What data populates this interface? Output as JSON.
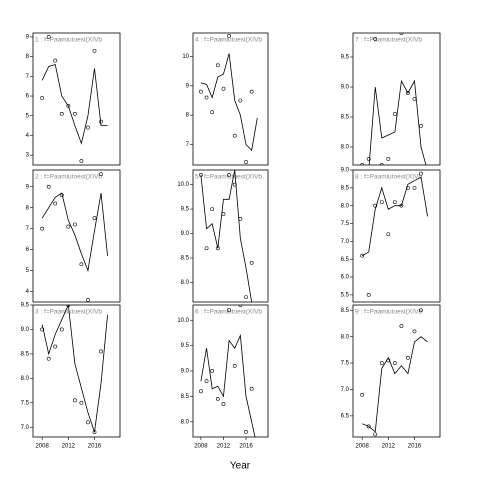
{
  "chart_data": [
    {
      "type": "line",
      "title": "1 : f=Paamiutoest(XIVb",
      "x": [
        2008,
        2009,
        2010,
        2011,
        2012,
        2013,
        2014,
        2015,
        2016,
        2017
      ],
      "points": [
        5.9,
        9.0,
        7.8,
        5.1,
        5.5,
        5.1,
        2.7,
        4.4,
        8.3,
        4.7
      ],
      "fit_x": [
        2008,
        2009,
        2010,
        2011,
        2012,
        2013,
        2014,
        2015,
        2016,
        2017,
        2018
      ],
      "fit": [
        6.8,
        7.5,
        7.6,
        6.0,
        5.5,
        4.5,
        3.6,
        5.0,
        7.4,
        4.5,
        4.5
      ],
      "xlim": [
        2006.6,
        2019.9
      ],
      "ylim": [
        2.5,
        9.2
      ],
      "yticks": [
        3,
        4,
        5,
        6,
        7,
        8,
        9
      ]
    },
    {
      "type": "line",
      "title": "2 : f=Paamiutoest(XIVb",
      "x": [
        2008,
        2009,
        2010,
        2011,
        2012,
        2013,
        2014,
        2015,
        2016,
        2017
      ],
      "points": [
        7.0,
        9.0,
        8.2,
        8.6,
        7.1,
        7.2,
        5.3,
        3.6,
        7.5,
        9.6
      ],
      "fit_x": [
        2008,
        2009,
        2010,
        2011,
        2012,
        2013,
        2014,
        2015,
        2016,
        2017,
        2018
      ],
      "fit": [
        7.5,
        8.0,
        8.5,
        8.7,
        7.4,
        6.7,
        5.8,
        5.0,
        6.9,
        8.7,
        5.7
      ],
      "xlim": [
        2006.6,
        2019.9
      ],
      "ylim": [
        3.5,
        9.8
      ],
      "yticks": [
        4,
        5,
        6,
        7,
        8,
        9
      ]
    },
    {
      "type": "line",
      "title": "3 : f=Paamiutoest(XIVb",
      "x": [
        2008,
        2009,
        2010,
        2011,
        2012,
        2013,
        2014,
        2015,
        2016,
        2017
      ],
      "points": [
        9.0,
        8.4,
        8.65,
        9.0,
        9.5,
        7.55,
        7.5,
        7.1,
        6.9,
        8.55
      ],
      "fit_x": [
        2008,
        2009,
        2010,
        2011,
        2012,
        2013,
        2014,
        2015,
        2016,
        2017,
        2018
      ],
      "fit": [
        9.1,
        8.5,
        8.9,
        9.2,
        9.5,
        8.3,
        7.8,
        7.3,
        6.9,
        7.9,
        9.3
      ],
      "xlim": [
        2006.6,
        2019.9
      ],
      "ylim": [
        6.8,
        9.5
      ],
      "yticks": [
        {
          "value": 7,
          "label": "7.0"
        },
        7.5,
        {
          "value": 8,
          "label": "8.0"
        },
        8.5,
        {
          "value": 9,
          "label": "9.0"
        },
        9.5
      ],
      "xticks": [
        2008,
        2012,
        2016
      ]
    },
    {
      "type": "line",
      "title": "4 : f=Paamiutoest(XIVb",
      "x": [
        2008,
        2009,
        2010,
        2011,
        2012,
        2013,
        2014,
        2015,
        2016,
        2017
      ],
      "points": [
        8.8,
        8.6,
        8.1,
        9.7,
        8.9,
        10.7,
        7.3,
        8.5,
        6.4,
        8.8
      ],
      "fit_x": [
        2008,
        2009,
        2010,
        2011,
        2012,
        2013,
        2014,
        2015,
        2016,
        2017,
        2018
      ],
      "fit": [
        9.1,
        9.05,
        8.6,
        9.3,
        9.4,
        10.1,
        8.5,
        8.0,
        7.0,
        6.8,
        7.9
      ],
      "xlim": [
        2006.6,
        2019.9
      ],
      "ylim": [
        6.3,
        10.8
      ],
      "yticks": [
        7,
        8,
        9,
        10
      ]
    },
    {
      "type": "line",
      "title": "5 : f=Paamiutoest(XIVb",
      "x": [
        2008,
        2009,
        2010,
        2011,
        2012,
        2013,
        2014,
        2015,
        2016,
        2017
      ],
      "points": [
        10.2,
        8.7,
        9.5,
        8.7,
        9.4,
        10.2,
        10.0,
        9.3,
        7.7,
        8.4
      ],
      "fit_x": [
        2008,
        2009,
        2010,
        2011,
        2012,
        2013,
        2014,
        2015,
        2016,
        2017,
        2018
      ],
      "fit": [
        10.2,
        9.1,
        9.2,
        8.7,
        9.7,
        9.7,
        10.3,
        8.9,
        8.3,
        7.6,
        7.2
      ],
      "xlim": [
        2006.6,
        2019.9
      ],
      "ylim": [
        7.6,
        10.3
      ],
      "yticks": [
        {
          "value": 8,
          "label": "8.0"
        },
        8.5,
        {
          "value": 9,
          "label": "9.0"
        },
        9.5,
        {
          "value": 10,
          "label": "10.0"
        }
      ]
    },
    {
      "type": "line",
      "title": "6 : f=Paamiutoest(XIVb",
      "x": [
        2008,
        2009,
        2010,
        2011,
        2012,
        2013,
        2014,
        2015,
        2016,
        2017
      ],
      "points": [
        8.6,
        8.8,
        9.0,
        8.45,
        8.35,
        10.2,
        9.1,
        10.3,
        7.8,
        8.65
      ],
      "fit_x": [
        2008,
        2009,
        2010,
        2011,
        2012,
        2013,
        2014,
        2015,
        2016,
        2017,
        2018
      ],
      "fit": [
        8.8,
        9.45,
        8.65,
        8.7,
        8.5,
        9.6,
        9.45,
        9.7,
        8.5,
        8.0,
        7.5
      ],
      "xlim": [
        2006.6,
        2019.9
      ],
      "ylim": [
        7.7,
        10.3
      ],
      "yticks": [
        {
          "value": 8,
          "label": "8.0"
        },
        8.5,
        {
          "value": 9,
          "label": "9.0"
        },
        9.5,
        {
          "value": 10,
          "label": "10.0"
        }
      ],
      "xticks": [
        2008,
        2012,
        2016
      ]
    },
    {
      "type": "line",
      "title": "7 : f=Paamiutoest(XIVb",
      "x": [
        2008,
        2009,
        2010,
        2011,
        2012,
        2013,
        2014,
        2015,
        2016,
        2017
      ],
      "points": [
        7.7,
        7.8,
        9.8,
        7.7,
        7.8,
        8.55,
        9.9,
        8.9,
        8.8,
        8.35
      ],
      "fit_x": [
        2008,
        2009,
        2010,
        2011,
        2012,
        2013,
        2014,
        2015,
        2016,
        2017,
        2018
      ],
      "fit": [
        7.5,
        7.6,
        9.0,
        8.15,
        8.2,
        8.25,
        9.1,
        8.9,
        9.1,
        8.0,
        7.6
      ],
      "xlim": [
        2006.6,
        2019.9
      ],
      "ylim": [
        7.7,
        9.9
      ],
      "yticks": [
        {
          "value": 8,
          "label": "8.0"
        },
        8.5,
        {
          "value": 9,
          "label": "9.0"
        },
        9.5
      ]
    },
    {
      "type": "line",
      "title": "8 : f=Paamiutoest(XIVb",
      "x": [
        2008,
        2009,
        2010,
        2011,
        2012,
        2013,
        2014,
        2015,
        2016,
        2017
      ],
      "points": [
        6.6,
        5.5,
        8.0,
        8.1,
        7.2,
        8.1,
        8.0,
        8.5,
        8.5,
        8.9
      ],
      "fit_x": [
        2008,
        2009,
        2010,
        2011,
        2012,
        2013,
        2014,
        2015,
        2016,
        2017,
        2018
      ],
      "fit": [
        6.6,
        6.7,
        7.9,
        8.5,
        7.9,
        8.0,
        8.0,
        8.6,
        8.7,
        8.8,
        7.7
      ],
      "xlim": [
        2006.6,
        2019.9
      ],
      "ylim": [
        5.3,
        9.0
      ],
      "yticks": [
        5.5,
        {
          "value": 6,
          "label": "6.0"
        },
        6.5,
        {
          "value": 7,
          "label": "7.0"
        },
        7.5,
        {
          "value": 8,
          "label": "8.0"
        },
        8.5,
        {
          "value": 9,
          "label": "9.0"
        }
      ]
    },
    {
      "type": "line",
      "title": "9 : f=Paamiutoest(XIVb",
      "x": [
        2008,
        2009,
        2010,
        2011,
        2012,
        2013,
        2014,
        2015,
        2016,
        2017
      ],
      "points": [
        6.9,
        6.3,
        6.15,
        7.5,
        7.55,
        7.5,
        8.2,
        7.6,
        8.1,
        8.5
      ],
      "fit_x": [
        2008,
        2009,
        2010,
        2011,
        2012,
        2013,
        2014,
        2015,
        2016,
        2017,
        2018
      ],
      "fit": [
        6.35,
        6.3,
        6.2,
        7.4,
        7.6,
        7.3,
        7.45,
        7.3,
        7.9,
        8.0,
        7.9
      ],
      "xlim": [
        2006.6,
        2019.9
      ],
      "ylim": [
        6.1,
        8.6
      ],
      "yticks": [
        6.5,
        {
          "value": 7,
          "label": "7.0"
        },
        7.5,
        {
          "value": 8,
          "label": "8.0"
        },
        8.5
      ],
      "xticks": [
        2008,
        2012,
        2016
      ]
    }
  ],
  "xlabel": "Year"
}
